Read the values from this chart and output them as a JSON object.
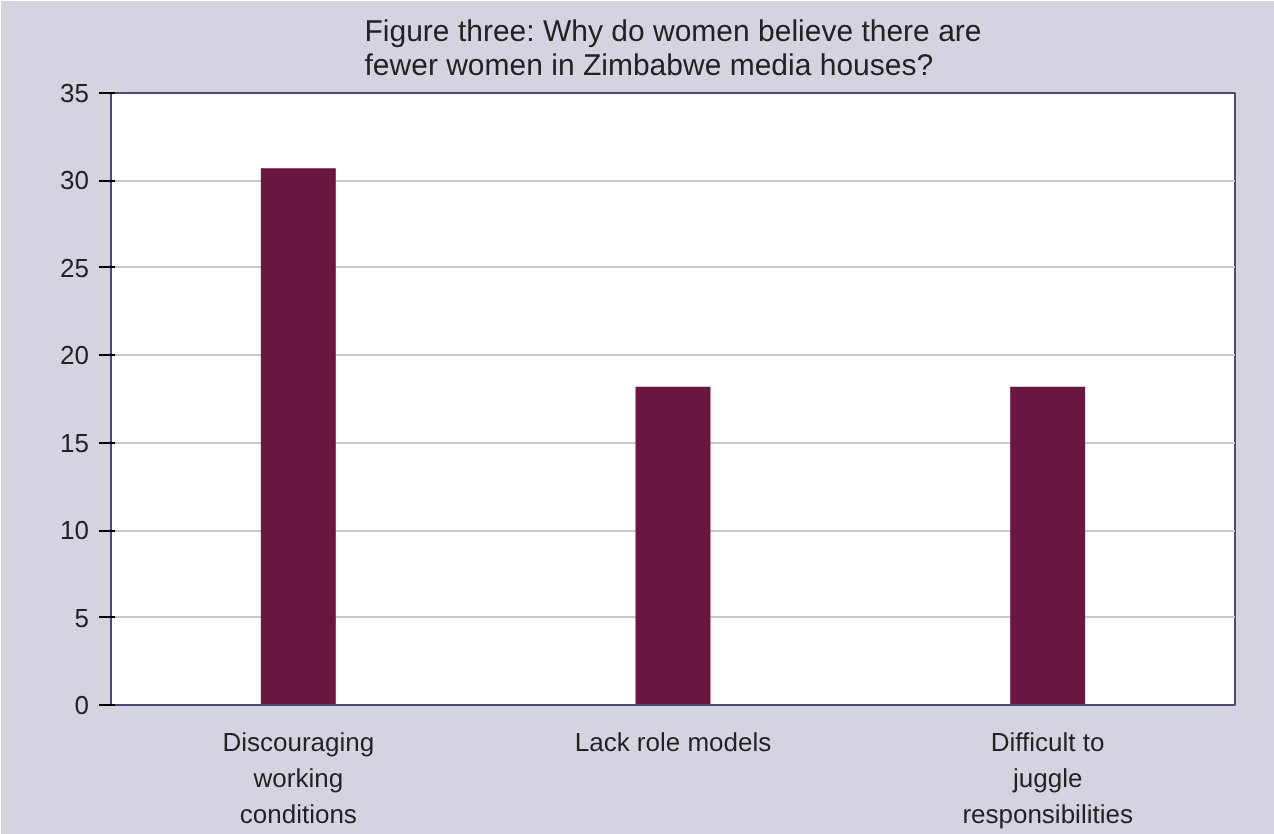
{
  "chart_data": {
    "type": "bar",
    "title": "Figure three: Why do women believe there are fewer women in Zimbabwe media houses?",
    "categories": [
      "Discouraging working conditions",
      "Lack role models",
      "Difficult to juggle responsibilities"
    ],
    "values": [
      30.7,
      18.2,
      18.2
    ],
    "color": "#6b1541",
    "ylim": [
      0,
      35
    ],
    "yticks": [
      0,
      5,
      10,
      15,
      20,
      25,
      30,
      35
    ],
    "grid": "y"
  }
}
